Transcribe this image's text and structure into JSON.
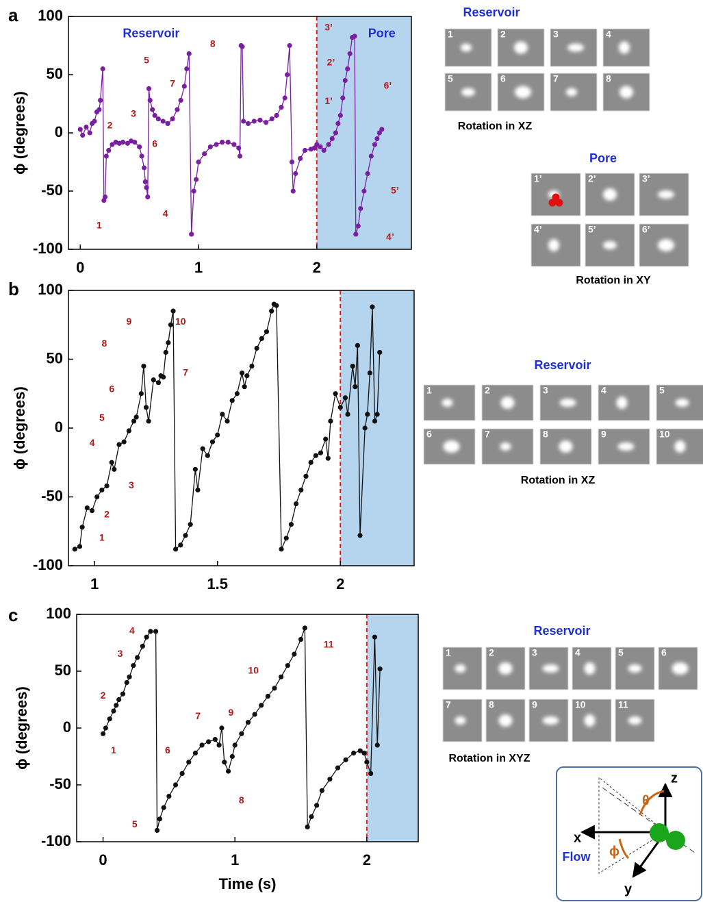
{
  "chart_data": [
    {
      "type": "line",
      "panel": "a",
      "ylabel": "ϕ (degrees)",
      "color": "#7b1fa2",
      "annotation_color": "#b01a1a",
      "label_color": "#1f2fd6",
      "shade_color": "#b5d5ee",
      "divider_x": 2,
      "xlim": [
        -0.1,
        2.8
      ],
      "ylim": [
        -100,
        100
      ],
      "xticks": [
        0,
        1,
        2
      ],
      "yticks": [
        -100,
        -50,
        0,
        50,
        100
      ],
      "x": [
        0,
        0.02,
        0.05,
        0.08,
        0.1,
        0.12,
        0.14,
        0.16,
        0.17,
        0.19,
        0.2,
        0.21,
        0.22,
        0.24,
        0.27,
        0.3,
        0.33,
        0.36,
        0.4,
        0.43,
        0.46,
        0.5,
        0.52,
        0.54,
        0.55,
        0.56,
        0.57,
        0.58,
        0.59,
        0.61,
        0.63,
        0.66,
        0.7,
        0.74,
        0.78,
        0.82,
        0.85,
        0.88,
        0.9,
        0.92,
        0.94,
        0.96,
        0.98,
        1.0,
        1.05,
        1.1,
        1.15,
        1.2,
        1.25,
        1.3,
        1.34,
        1.35,
        1.36,
        1.37,
        1.38,
        1.42,
        1.47,
        1.52,
        1.57,
        1.62,
        1.66,
        1.7,
        1.73,
        1.75,
        1.77,
        1.79,
        1.8,
        1.82,
        1.86,
        1.9,
        1.95,
        1.98,
        2.0,
        2.03,
        2.06,
        2.1,
        2.13,
        2.16,
        2.18,
        2.2,
        2.22,
        2.24,
        2.26,
        2.28,
        2.3,
        2.32,
        2.33,
        2.35,
        2.37,
        2.4,
        2.43,
        2.46,
        2.49,
        2.51,
        2.53,
        2.55
      ],
      "values": [
        3,
        -2,
        5,
        0,
        8,
        10,
        18,
        20,
        28,
        55,
        -58,
        -55,
        -20,
        -15,
        -10,
        -8,
        -9,
        -8,
        -9,
        -7,
        -8,
        -12,
        -20,
        -30,
        -42,
        -47,
        -55,
        38,
        28,
        20,
        15,
        12,
        10,
        8,
        12,
        20,
        28,
        40,
        55,
        68,
        -87,
        -50,
        -40,
        -25,
        -18,
        -12,
        -10,
        -8,
        -8,
        -10,
        -13,
        -20,
        75,
        74,
        10,
        8,
        10,
        11,
        9,
        12,
        15,
        22,
        30,
        50,
        75,
        -25,
        -50,
        -35,
        -22,
        -15,
        -14,
        -13,
        -10,
        -12,
        -15,
        -10,
        -5,
        0,
        8,
        15,
        30,
        45,
        55,
        68,
        82,
        83,
        -87,
        -80,
        -65,
        -50,
        -35,
        -20,
        -10,
        -5,
        0,
        3
      ],
      "region_labels": [
        {
          "text": "Reservoir",
          "x": 0.6,
          "y": 85
        },
        {
          "text": "Pore",
          "x": 2.55,
          "y": 85
        }
      ],
      "annotations": [
        {
          "text": "1",
          "x": 0.16,
          "y": -80
        },
        {
          "text": "2",
          "x": 0.25,
          "y": 6
        },
        {
          "text": "3",
          "x": 0.45,
          "y": 16
        },
        {
          "text": "4",
          "x": 0.72,
          "y": -70
        },
        {
          "text": "5",
          "x": 0.56,
          "y": 62
        },
        {
          "text": "6",
          "x": 0.63,
          "y": -10
        },
        {
          "text": "7",
          "x": 0.78,
          "y": 42
        },
        {
          "text": "8",
          "x": 1.12,
          "y": 76
        },
        {
          "text": "1’",
          "x": 2.1,
          "y": 27
        },
        {
          "text": "2’",
          "x": 2.12,
          "y": 60
        },
        {
          "text": "3’",
          "x": 2.1,
          "y": 90
        },
        {
          "text": "4’",
          "x": 2.62,
          "y": -90
        },
        {
          "text": "5’",
          "x": 2.66,
          "y": -50
        },
        {
          "text": "6’",
          "x": 2.6,
          "y": 40
        }
      ],
      "thumbnails": [
        {
          "title": "Reservoir",
          "labels": [
            "1",
            "2",
            "3",
            "4",
            "5",
            "6",
            "7",
            "8"
          ],
          "caption": "Rotation in  XZ"
        },
        {
          "title": "Pore",
          "labels": [
            "1’",
            "2’",
            "3’",
            "4’",
            "5’",
            "6’"
          ],
          "caption": "Rotation in XY"
        }
      ]
    },
    {
      "type": "line",
      "panel": "b",
      "ylabel": "ϕ (degrees)",
      "color": "#111111",
      "annotation_color": "#b01a1a",
      "label_color": "#1f2fd6",
      "shade_color": "#b5d5ee",
      "divider_x": 2,
      "xlim": [
        0.894,
        2.3
      ],
      "ylim": [
        -100,
        100
      ],
      "xticks": [
        1,
        1.5,
        2
      ],
      "yticks": [
        -100,
        -50,
        0,
        50,
        100
      ],
      "x": [
        0.92,
        0.94,
        0.95,
        0.97,
        0.99,
        1.01,
        1.03,
        1.05,
        1.07,
        1.08,
        1.1,
        1.12,
        1.14,
        1.16,
        1.17,
        1.19,
        1.2,
        1.21,
        1.22,
        1.24,
        1.26,
        1.27,
        1.28,
        1.29,
        1.3,
        1.31,
        1.32,
        1.33,
        1.35,
        1.37,
        1.39,
        1.41,
        1.42,
        1.44,
        1.46,
        1.48,
        1.5,
        1.52,
        1.54,
        1.56,
        1.58,
        1.6,
        1.61,
        1.62,
        1.64,
        1.66,
        1.68,
        1.7,
        1.72,
        1.73,
        1.74,
        1.76,
        1.78,
        1.8,
        1.82,
        1.84,
        1.86,
        1.88,
        1.9,
        1.92,
        1.94,
        1.95,
        1.96,
        1.98,
        2.0,
        2.02,
        2.03,
        2.05,
        2.06,
        2.07,
        2.08,
        2.1,
        2.11,
        2.12,
        2.13,
        2.14,
        2.15,
        2.16
      ],
      "values": [
        -88,
        -86,
        -72,
        -58,
        -60,
        -50,
        -45,
        -42,
        -25,
        -30,
        -12,
        -10,
        -2,
        5,
        8,
        25,
        45,
        15,
        5,
        35,
        33,
        38,
        37,
        55,
        62,
        75,
        85,
        -88,
        -85,
        -78,
        -70,
        -30,
        -45,
        -15,
        -20,
        -10,
        -5,
        10,
        5,
        20,
        25,
        40,
        30,
        38,
        45,
        58,
        65,
        70,
        85,
        90,
        89,
        -88,
        -80,
        -70,
        -55,
        -45,
        -35,
        -25,
        -20,
        -18,
        -8,
        -22,
        5,
        25,
        15,
        22,
        10,
        45,
        30,
        60,
        -78,
        0,
        10,
        40,
        88,
        5,
        10,
        55
      ],
      "region_labels": [],
      "annotations": [
        {
          "text": "1",
          "x": 1.03,
          "y": -80
        },
        {
          "text": "2",
          "x": 1.05,
          "y": -63
        },
        {
          "text": "3",
          "x": 1.15,
          "y": -42
        },
        {
          "text": "4",
          "x": 0.99,
          "y": -11
        },
        {
          "text": "5",
          "x": 1.03,
          "y": 7
        },
        {
          "text": "6",
          "x": 1.07,
          "y": 28
        },
        {
          "text": "7",
          "x": 1.37,
          "y": 40
        },
        {
          "text": "8",
          "x": 1.04,
          "y": 61
        },
        {
          "text": "9",
          "x": 1.14,
          "y": 77
        },
        {
          "text": "10",
          "x": 1.35,
          "y": 77
        }
      ],
      "thumbnails": [
        {
          "title": "Reservoir",
          "labels": [
            "1",
            "2",
            "3",
            "4",
            "5",
            "6",
            "7",
            "8",
            "9",
            "10"
          ],
          "caption": "Rotation in  XZ"
        }
      ]
    },
    {
      "type": "line",
      "panel": "c",
      "ylabel": "ϕ (degrees)",
      "xlabel": "Time (s)",
      "color": "#111111",
      "annotation_color": "#b01a1a",
      "label_color": "#1f2fd6",
      "shade_color": "#b5d5ee",
      "divider_x": 2,
      "xlim": [
        -0.2,
        2.39
      ],
      "ylim": [
        -100,
        100
      ],
      "xticks": [
        0,
        1,
        2
      ],
      "yticks": [
        -100,
        -50,
        0,
        50,
        100
      ],
      "x": [
        0,
        0.02,
        0.05,
        0.08,
        0.1,
        0.12,
        0.15,
        0.18,
        0.2,
        0.23,
        0.26,
        0.3,
        0.33,
        0.36,
        0.4,
        0.41,
        0.43,
        0.46,
        0.5,
        0.55,
        0.6,
        0.65,
        0.7,
        0.75,
        0.8,
        0.85,
        0.88,
        0.9,
        0.92,
        0.95,
        0.98,
        1.0,
        1.05,
        1.1,
        1.15,
        1.2,
        1.25,
        1.3,
        1.35,
        1.4,
        1.45,
        1.5,
        1.53,
        1.55,
        1.58,
        1.62,
        1.66,
        1.72,
        1.78,
        1.84,
        1.9,
        1.95,
        1.98,
        2.0,
        2.03,
        2.06,
        2.08,
        2.1
      ],
      "values": [
        -5,
        0,
        8,
        15,
        20,
        25,
        30,
        40,
        45,
        55,
        62,
        72,
        80,
        85,
        85,
        -90,
        -80,
        -70,
        -60,
        -50,
        -40,
        -30,
        -22,
        -15,
        -12,
        -10,
        -15,
        0,
        -30,
        -38,
        -25,
        -15,
        -5,
        5,
        12,
        20,
        28,
        35,
        45,
        55,
        65,
        78,
        88,
        -87,
        -78,
        -68,
        -55,
        -45,
        -35,
        -28,
        -22,
        -20,
        -22,
        -30,
        -40,
        80,
        -15,
        52
      ],
      "region_labels": [],
      "annotations": [
        {
          "text": "1",
          "x": 0.08,
          "y": -20
        },
        {
          "text": "2",
          "x": 0,
          "y": 28
        },
        {
          "text": "3",
          "x": 0.13,
          "y": 65
        },
        {
          "text": "4",
          "x": 0.22,
          "y": 85
        },
        {
          "text": "5",
          "x": 0.24,
          "y": -85
        },
        {
          "text": "6",
          "x": 0.49,
          "y": -20
        },
        {
          "text": "7",
          "x": 0.72,
          "y": 10
        },
        {
          "text": "8",
          "x": 1.05,
          "y": -64
        },
        {
          "text": "9",
          "x": 0.97,
          "y": 13
        },
        {
          "text": "10",
          "x": 1.14,
          "y": 50
        },
        {
          "text": "11",
          "x": 1.71,
          "y": 73
        }
      ],
      "thumbnails": [
        {
          "title": "Reservoir",
          "labels": [
            "1",
            "2",
            "3",
            "4",
            "5",
            "6",
            "7",
            "8",
            "9",
            "10",
            "11"
          ],
          "caption": "Rotation in  XYZ"
        }
      ],
      "diagram": {
        "z": "z",
        "x": "x",
        "y": "y",
        "theta": "θ",
        "phi": "ϕ",
        "flow": "Flow"
      }
    }
  ]
}
